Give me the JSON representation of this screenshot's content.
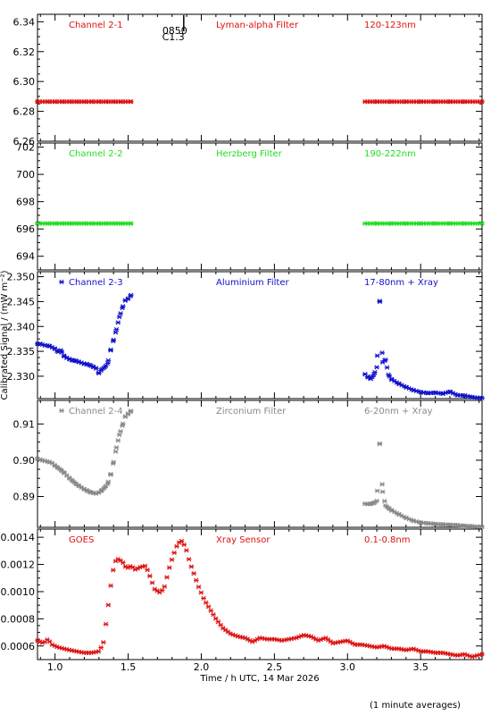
{
  "figure": {
    "ylabel": "Calibrated Signal / (mW m⁻²)",
    "xlabel": "Time / h UTC, 14 Mar 2026",
    "footnote": "(1 minute averages)",
    "annotation_marker": {
      "x": 1.88,
      "label_top": "0850",
      "label_bottom": "C1.3"
    }
  },
  "chart_data": [
    {
      "type": "scatter",
      "channel": "Channel 2-1",
      "filter": "Lyman-alpha Filter",
      "band": "120-123nm",
      "color": "#dd1111",
      "marker": "x",
      "ylim": [
        6.26,
        6.345
      ],
      "yticks": [
        "6.34",
        "6.32",
        "6.30",
        "6.28",
        "6.26"
      ],
      "xlim": [
        0.88,
        3.92
      ],
      "x": [
        0.88,
        0.95,
        1.0,
        1.05,
        1.1,
        1.15,
        1.2,
        1.25,
        1.3,
        1.35,
        1.4,
        1.45,
        1.52,
        3.12,
        3.2,
        3.3,
        3.4,
        3.5,
        3.6,
        3.7,
        3.8,
        3.92
      ],
      "y": [
        6.2865,
        6.2865,
        6.2865,
        6.2865,
        6.2865,
        6.2865,
        6.2865,
        6.2865,
        6.2865,
        6.2865,
        6.2865,
        6.2865,
        6.2865,
        6.2865,
        6.2865,
        6.2865,
        6.2865,
        6.2865,
        6.2865,
        6.2865,
        6.2865,
        6.2865
      ],
      "connected_segments": [
        [
          0.88,
          1.52
        ],
        [
          3.12,
          3.92
        ]
      ]
    },
    {
      "type": "scatter",
      "channel": "Channel 2-2",
      "filter": "Herzberg Filter",
      "band": "190-222nm",
      "color": "#22dd22",
      "marker": "x",
      "ylim": [
        693,
        702.3
      ],
      "yticks": [
        "702",
        "700",
        "698",
        "696",
        "694"
      ],
      "xlim": [
        0.88,
        3.92
      ],
      "x": [
        0.88,
        0.95,
        1.0,
        1.05,
        1.1,
        1.15,
        1.2,
        1.25,
        1.3,
        1.35,
        1.4,
        1.45,
        1.52,
        3.12,
        3.2,
        3.3,
        3.4,
        3.5,
        3.6,
        3.7,
        3.8,
        3.92
      ],
      "y": [
        696.4,
        696.4,
        696.4,
        696.4,
        696.4,
        696.4,
        696.4,
        696.4,
        696.4,
        696.4,
        696.4,
        696.4,
        696.4,
        696.4,
        696.4,
        696.4,
        696.4,
        696.4,
        696.4,
        696.4,
        696.4,
        696.4
      ],
      "connected_segments": [
        [
          0.88,
          1.52
        ],
        [
          3.12,
          3.92
        ]
      ]
    },
    {
      "type": "scatter",
      "channel": "Channel 2-3",
      "filter": "Aluminium Filter",
      "band": "17-80nm + Xray",
      "color": "#1111cc",
      "marker": "x",
      "ylim": [
        2.3255,
        2.351
      ],
      "yticks": [
        "2.350",
        "2.345",
        "2.340",
        "2.335",
        "2.330"
      ],
      "xlim": [
        0.88,
        3.92
      ],
      "x": [
        0.88,
        0.9,
        0.93,
        0.96,
        0.98,
        1.0,
        1.02,
        1.04,
        1.06,
        1.08,
        1.1,
        1.12,
        1.14,
        1.16,
        1.18,
        1.2,
        1.22,
        1.24,
        1.26,
        1.28,
        1.3,
        1.32,
        1.34,
        1.36,
        1.38,
        1.4,
        1.42,
        1.44,
        1.46,
        1.48,
        1.5,
        1.52,
        3.12,
        3.14,
        3.16,
        3.18,
        3.2,
        3.22,
        3.24,
        3.26,
        3.28,
        3.3,
        3.35,
        3.4,
        3.45,
        3.5,
        3.55,
        3.6,
        3.65,
        3.7,
        3.75,
        3.8,
        3.85,
        3.92
      ],
      "y": [
        2.3365,
        2.3365,
        2.3362,
        2.3361,
        2.3358,
        2.3355,
        2.3349,
        2.3352,
        2.3341,
        2.3337,
        2.3334,
        2.3332,
        2.3331,
        2.3329,
        2.3327,
        2.3325,
        2.3324,
        2.3322,
        2.3319,
        2.3316,
        2.3306,
        2.3314,
        2.3318,
        2.3326,
        2.3352,
        2.3373,
        2.3394,
        2.3419,
        2.3437,
        2.3452,
        2.3456,
        2.3463,
        2.3304,
        2.3298,
        2.3295,
        2.3303,
        2.3318,
        2.3451,
        2.3328,
        2.3333,
        2.3303,
        2.3294,
        2.3285,
        2.3278,
        2.3272,
        2.3268,
        2.3266,
        2.3267,
        2.3265,
        2.3269,
        2.3262,
        2.3261,
        2.3258,
        2.3256
      ],
      "connected_segments": [
        [
          0.88,
          1.52
        ],
        [
          3.12,
          3.92
        ]
      ]
    },
    {
      "type": "scatter",
      "channel": "Channel 2-4",
      "filter": "Zirconium Filter",
      "band": "6-20nm + Xray",
      "color": "#888888",
      "marker": "x",
      "ylim": [
        0.8815,
        0.9165
      ],
      "yticks": [
        "0.91",
        "0.90",
        "0.89"
      ],
      "xlim": [
        0.88,
        3.92
      ],
      "x": [
        0.88,
        0.9,
        0.93,
        0.96,
        0.98,
        1.0,
        1.02,
        1.04,
        1.06,
        1.08,
        1.1,
        1.12,
        1.14,
        1.16,
        1.18,
        1.2,
        1.22,
        1.24,
        1.26,
        1.28,
        1.3,
        1.32,
        1.34,
        1.36,
        1.38,
        1.4,
        1.42,
        1.44,
        1.46,
        1.48,
        1.5,
        1.52,
        3.12,
        3.14,
        3.16,
        3.18,
        3.2,
        3.22,
        3.24,
        3.26,
        3.28,
        3.3,
        3.35,
        3.4,
        3.45,
        3.5,
        3.55,
        3.6,
        3.65,
        3.7,
        3.75,
        3.8,
        3.85,
        3.92
      ],
      "y": [
        0.9004,
        0.9001,
        0.8998,
        0.8995,
        0.8992,
        0.8985,
        0.8979,
        0.8973,
        0.8966,
        0.8958,
        0.895,
        0.8943,
        0.8936,
        0.893,
        0.8925,
        0.892,
        0.8916,
        0.8912,
        0.891,
        0.8908,
        0.8911,
        0.8917,
        0.8925,
        0.8935,
        0.896,
        0.8995,
        0.9035,
        0.907,
        0.9095,
        0.912,
        0.9128,
        0.9136,
        0.888,
        0.8879,
        0.888,
        0.8882,
        0.8888,
        0.9046,
        0.8913,
        0.8875,
        0.8868,
        0.8862,
        0.8851,
        0.8841,
        0.8833,
        0.8828,
        0.8826,
        0.8824,
        0.8823,
        0.8822,
        0.8821,
        0.8819,
        0.8818,
        0.8816
      ],
      "connected_segments": [
        [
          0.88,
          1.52
        ],
        [
          3.12,
          3.92
        ]
      ]
    },
    {
      "type": "scatter",
      "channel": "GOES",
      "filter": "Xray Sensor",
      "band": "0.1-0.8nm",
      "color": "#dd1111",
      "marker": "x",
      "ylim": [
        0.0005,
        0.00146
      ],
      "yticks": [
        "0.0014",
        "0.0012",
        "0.0010",
        "0.0008",
        "0.0006"
      ],
      "xlim": [
        0.88,
        3.92
      ],
      "x": [
        0.88,
        0.92,
        0.95,
        0.98,
        1.02,
        1.06,
        1.1,
        1.15,
        1.2,
        1.25,
        1.3,
        1.33,
        1.35,
        1.37,
        1.39,
        1.41,
        1.43,
        1.46,
        1.49,
        1.52,
        1.55,
        1.58,
        1.62,
        1.65,
        1.68,
        1.72,
        1.75,
        1.78,
        1.8,
        1.83,
        1.86,
        1.88,
        1.9,
        1.92,
        1.95,
        1.98,
        2.02,
        2.06,
        2.1,
        2.15,
        2.2,
        2.25,
        2.3,
        2.35,
        2.4,
        2.45,
        2.5,
        2.55,
        2.6,
        2.65,
        2.7,
        2.75,
        2.8,
        2.85,
        2.9,
        2.95,
        3.0,
        3.05,
        3.1,
        3.15,
        3.2,
        3.25,
        3.3,
        3.35,
        3.4,
        3.45,
        3.5,
        3.55,
        3.6,
        3.65,
        3.7,
        3.75,
        3.8,
        3.85,
        3.92
      ],
      "y": [
        0.00064,
        0.00062,
        0.00065,
        0.00061,
        0.00059,
        0.00058,
        0.00057,
        0.00056,
        0.00055,
        0.00055,
        0.00056,
        0.00062,
        0.00078,
        0.00095,
        0.00112,
        0.00122,
        0.00124,
        0.00122,
        0.00117,
        0.00119,
        0.00116,
        0.00118,
        0.00119,
        0.00111,
        0.00102,
        0.00099,
        0.00104,
        0.00117,
        0.00124,
        0.00133,
        0.00138,
        0.00135,
        0.0013,
        0.00122,
        0.00113,
        0.00104,
        0.00094,
        0.00087,
        0.0008,
        0.00073,
        0.00069,
        0.00067,
        0.00066,
        0.00063,
        0.00066,
        0.00065,
        0.00065,
        0.00064,
        0.00065,
        0.00066,
        0.00068,
        0.00067,
        0.00064,
        0.00066,
        0.00062,
        0.00063,
        0.00064,
        0.00061,
        0.00061,
        0.0006,
        0.00059,
        0.0006,
        0.00058,
        0.00058,
        0.00057,
        0.00058,
        0.00056,
        0.00056,
        0.00055,
        0.00055,
        0.00054,
        0.00053,
        0.00054,
        0.00052,
        0.00054
      ]
    }
  ],
  "x_axis": {
    "xlim": [
      0.88,
      3.92
    ],
    "ticks": [
      {
        "value": 1.0,
        "label": "1.0"
      },
      {
        "value": 1.5,
        "label": "1.5"
      },
      {
        "value": 2.0,
        "label": "2.0"
      },
      {
        "value": 2.5,
        "label": "2.5"
      },
      {
        "value": 3.0,
        "label": "3.0"
      },
      {
        "value": 3.5,
        "label": "3.5"
      }
    ]
  }
}
